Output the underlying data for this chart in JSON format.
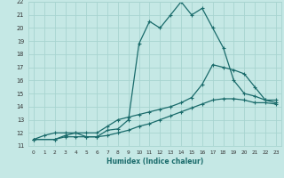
{
  "xlabel": "Humidex (Indice chaleur)",
  "xlim": [
    -0.5,
    23.5
  ],
  "ylim": [
    11,
    22
  ],
  "xticks": [
    0,
    1,
    2,
    3,
    4,
    5,
    6,
    7,
    8,
    9,
    10,
    11,
    12,
    13,
    14,
    15,
    16,
    17,
    18,
    19,
    20,
    21,
    22,
    23
  ],
  "yticks": [
    11,
    12,
    13,
    14,
    15,
    16,
    17,
    18,
    19,
    20,
    21,
    22
  ],
  "background_color": "#c5e8e5",
  "grid_color": "#a8d4d0",
  "line_color": "#1a6b6b",
  "line1_x": [
    0,
    1,
    2,
    3,
    4,
    5,
    6,
    7,
    8,
    9,
    10,
    11,
    12,
    13,
    14,
    15,
    16,
    17,
    18,
    19,
    20,
    21,
    22,
    23
  ],
  "line1_y": [
    11.5,
    11.8,
    12.0,
    12.0,
    12.0,
    11.7,
    11.7,
    12.2,
    12.3,
    13.0,
    18.8,
    20.5,
    20.0,
    21.0,
    22.0,
    21.0,
    21.5,
    20.0,
    18.5,
    16.0,
    15.0,
    14.8,
    14.5,
    14.5
  ],
  "line2_x": [
    0,
    2,
    3,
    4,
    5,
    6,
    7,
    8,
    9,
    10,
    11,
    12,
    13,
    14,
    15,
    16,
    17,
    18,
    19,
    20,
    21,
    22,
    23
  ],
  "line2_y": [
    11.5,
    11.5,
    11.8,
    12.0,
    12.0,
    12.0,
    12.5,
    13.0,
    13.2,
    13.4,
    13.6,
    13.8,
    14.0,
    14.3,
    14.7,
    15.7,
    17.2,
    17.0,
    16.8,
    16.5,
    15.5,
    14.5,
    14.3
  ],
  "line3_x": [
    0,
    2,
    3,
    4,
    5,
    6,
    7,
    8,
    9,
    10,
    11,
    12,
    13,
    14,
    15,
    16,
    17,
    18,
    19,
    20,
    21,
    22,
    23
  ],
  "line3_y": [
    11.5,
    11.5,
    11.7,
    11.7,
    11.7,
    11.7,
    11.8,
    12.0,
    12.2,
    12.5,
    12.7,
    13.0,
    13.3,
    13.6,
    13.9,
    14.2,
    14.5,
    14.6,
    14.6,
    14.5,
    14.3,
    14.3,
    14.2
  ]
}
